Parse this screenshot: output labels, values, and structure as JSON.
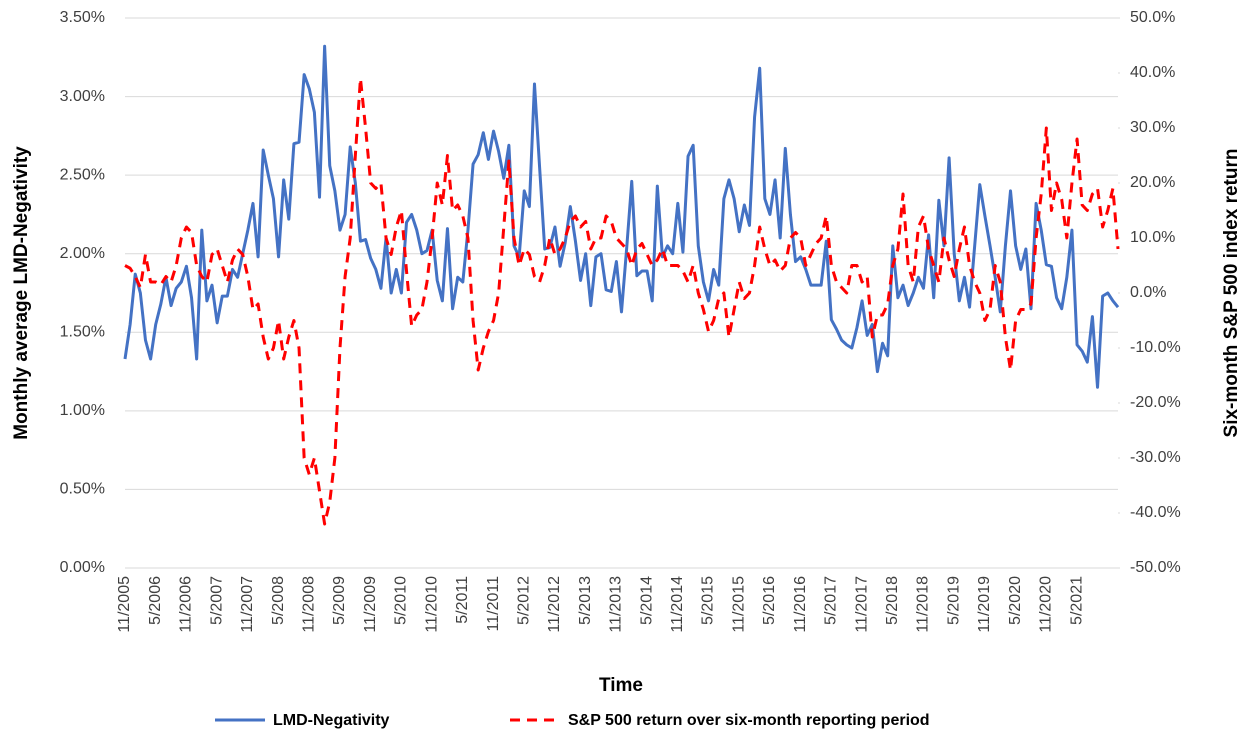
{
  "chart_data": {
    "type": "line",
    "xlabel": "Time",
    "ylabel": "Monthly average LMD-Negativity",
    "y2label": "Six-month S&P 500 index return",
    "categories": [
      "11/2005",
      null,
      null,
      null,
      null,
      null,
      "5/2006",
      null,
      null,
      null,
      null,
      null,
      "11/2006",
      null,
      null,
      null,
      null,
      null,
      "5/2007",
      null,
      null,
      null,
      null,
      null,
      "11/2007",
      null,
      null,
      null,
      null,
      null,
      "5/2008",
      null,
      null,
      null,
      null,
      null,
      "11/2008",
      null,
      null,
      null,
      null,
      null,
      "5/2009",
      null,
      null,
      null,
      null,
      null,
      "11/2009",
      null,
      null,
      null,
      null,
      null,
      "5/2010",
      null,
      null,
      null,
      null,
      null,
      "11/2010",
      null,
      null,
      null,
      null,
      null,
      "5/2011",
      null,
      null,
      null,
      null,
      null,
      "11/2011",
      null,
      null,
      null,
      null,
      null,
      "5/2012",
      null,
      null,
      null,
      null,
      null,
      "11/2012",
      null,
      null,
      null,
      null,
      null,
      "5/2013",
      null,
      null,
      null,
      null,
      null,
      "11/2013",
      null,
      null,
      null,
      null,
      null,
      "5/2014",
      null,
      null,
      null,
      null,
      null,
      "11/2014",
      null,
      null,
      null,
      null,
      null,
      "5/2015",
      null,
      null,
      null,
      null,
      null,
      "11/2015",
      null,
      null,
      null,
      null,
      null,
      "5/2016",
      null,
      null,
      null,
      null,
      null,
      "11/2016",
      null,
      null,
      null,
      null,
      null,
      "5/2017",
      null,
      null,
      null,
      null,
      null,
      "11/2017",
      null,
      null,
      null,
      null,
      null,
      "5/2018",
      null,
      null,
      null,
      null,
      null,
      "11/2018",
      null,
      null,
      null,
      null,
      null,
      "5/2019",
      null,
      null,
      null,
      null,
      null,
      "11/2019",
      null,
      null,
      null,
      null,
      null,
      "5/2020",
      null,
      null,
      null,
      null,
      null,
      "11/2020",
      null,
      null,
      null,
      null,
      null,
      "5/2021",
      null,
      null,
      null,
      null,
      null,
      null,
      null,
      null
    ],
    "series": [
      {
        "name": "LMD-Negativity",
        "color": "#4472c4",
        "linestyle": "solid",
        "values": [
          1.33,
          1.55,
          1.87,
          1.75,
          1.45,
          1.33,
          1.55,
          1.68,
          1.85,
          1.67,
          1.78,
          1.82,
          1.92,
          1.72,
          1.33,
          2.15,
          1.7,
          1.8,
          1.56,
          1.73,
          1.73,
          1.9,
          1.85,
          2.0,
          2.15,
          2.32,
          1.98,
          2.66,
          2.5,
          2.35,
          1.98,
          2.47,
          2.22,
          2.7,
          2.71,
          3.14,
          3.05,
          2.9,
          2.36,
          3.32,
          2.56,
          2.4,
          2.15,
          2.25,
          2.68,
          2.45,
          2.08,
          2.09,
          1.97,
          1.9,
          1.78,
          2.1,
          1.75,
          1.9,
          1.75,
          2.2,
          2.25,
          2.15,
          2.0,
          2.02,
          2.15,
          1.83,
          1.7,
          2.16,
          1.65,
          1.85,
          1.82,
          2.15,
          2.57,
          2.63,
          2.77,
          2.6,
          2.78,
          2.65,
          2.48,
          2.69,
          2.05,
          1.98,
          2.4,
          2.3,
          3.08,
          2.55,
          2.03,
          2.04,
          2.17,
          1.92,
          2.07,
          2.3,
          2.08,
          1.83,
          2.0,
          1.67,
          1.98,
          2.0,
          1.77,
          1.76,
          1.95,
          1.63,
          2.03,
          2.46,
          1.86,
          1.89,
          1.89,
          1.7,
          2.43,
          1.98,
          2.05,
          2.0,
          2.32,
          2.01,
          2.62,
          2.69,
          2.05,
          1.82,
          1.7,
          1.9,
          1.8,
          2.35,
          2.47,
          2.35,
          2.14,
          2.31,
          2.18,
          2.87,
          3.18,
          2.35,
          2.25,
          2.47,
          2.1,
          2.67,
          2.25,
          1.95,
          1.98,
          1.9,
          1.8,
          1.8,
          1.8,
          2.08,
          1.58,
          1.52,
          1.45,
          1.42,
          1.4,
          1.53,
          1.7,
          1.48,
          1.55,
          1.25,
          1.43,
          1.35,
          2.05,
          1.72,
          1.8,
          1.67,
          1.75,
          1.85,
          1.78,
          2.12,
          1.72,
          2.34,
          2.05,
          2.61,
          2.0,
          1.7,
          1.85,
          1.66,
          2.05,
          2.44,
          2.24,
          2.05,
          1.85,
          1.63,
          2.05,
          2.4,
          2.05,
          1.9,
          2.03,
          1.65,
          2.32,
          2.15,
          1.93,
          1.92,
          1.72,
          1.65,
          1.85,
          2.15,
          1.42,
          1.38,
          1.31,
          1.6,
          1.15,
          1.73,
          1.75,
          1.7,
          1.66
        ]
      },
      {
        "name": "S&P 500 return over six-month reporting period",
        "color": "#ff0000",
        "linestyle": "dashed",
        "axis": "y2",
        "values": [
          5,
          4.5,
          3,
          1,
          7,
          2,
          2,
          1.5,
          3,
          2,
          5,
          10,
          12,
          11,
          5,
          3,
          2,
          7,
          8,
          5,
          2,
          6,
          8,
          7,
          3,
          -3,
          -2,
          -8,
          -12,
          -10,
          -5,
          -12,
          -8,
          -5,
          -10,
          -30,
          -33,
          -30,
          -36,
          -42,
          -38,
          -30,
          -10,
          3,
          10,
          25,
          39,
          30,
          20,
          19,
          20,
          10,
          7,
          12,
          15,
          4,
          -6,
          -4,
          -3,
          2,
          10,
          20,
          16,
          25,
          15,
          16,
          14,
          10,
          -5,
          -14,
          -10,
          -7,
          -5,
          0,
          12,
          24,
          10,
          5,
          8,
          7,
          3,
          2,
          5,
          10,
          7,
          8,
          10,
          13,
          14,
          12,
          13,
          8,
          10,
          10,
          14,
          13,
          10,
          9,
          8,
          5,
          8,
          9,
          7,
          5,
          6,
          8,
          5,
          5,
          5,
          4,
          2,
          5,
          0,
          -3,
          -7,
          -5,
          -1,
          0,
          -8,
          -3,
          2,
          -1,
          0,
          5,
          12,
          8,
          5,
          6,
          4,
          5,
          10,
          11,
          10,
          5,
          7,
          9,
          10,
          14,
          5,
          2,
          1,
          0,
          5,
          5,
          2,
          3,
          -8,
          -4,
          -4,
          -2,
          5,
          8,
          18,
          5,
          2,
          12,
          14,
          8,
          5,
          2,
          10,
          6,
          3,
          8,
          12,
          5,
          2,
          0,
          -5,
          -3,
          5,
          2,
          -8,
          -14,
          -5,
          -3,
          -3,
          -2,
          10,
          18,
          30,
          15,
          20,
          17,
          10,
          20,
          28,
          16,
          15,
          18,
          19,
          12,
          15,
          19,
          8
        ]
      }
    ],
    "ylim": [
      0,
      3.5
    ],
    "yticks": [
      {
        "value": 0,
        "label": "0.00%"
      },
      {
        "value": 0.5,
        "label": "0.50%"
      },
      {
        "value": 1,
        "label": "1.00%"
      },
      {
        "value": 1.5,
        "label": "1.50%"
      },
      {
        "value": 2,
        "label": "2.00%"
      },
      {
        "value": 2.5,
        "label": "2.50%"
      },
      {
        "value": 3,
        "label": "3.00%"
      },
      {
        "value": 3.5,
        "label": "3.50%"
      }
    ],
    "y2lim": [
      -50,
      50
    ],
    "y2ticks": [
      {
        "value": -50,
        "label": "-50.0%"
      },
      {
        "value": -40,
        "label": "-40.0%"
      },
      {
        "value": -30,
        "label": "-30.0%"
      },
      {
        "value": -20,
        "label": "-20.0%"
      },
      {
        "value": -10,
        "label": "-10.0%"
      },
      {
        "value": 0,
        "label": "0.0%"
      },
      {
        "value": 10,
        "label": "10.0%"
      },
      {
        "value": 20,
        "label": "20.0%"
      },
      {
        "value": 30,
        "label": "30.0%"
      },
      {
        "value": 40,
        "label": "40.0%"
      },
      {
        "value": 50,
        "label": "50.0%"
      }
    ],
    "grid": true,
    "legend": "bottom"
  }
}
